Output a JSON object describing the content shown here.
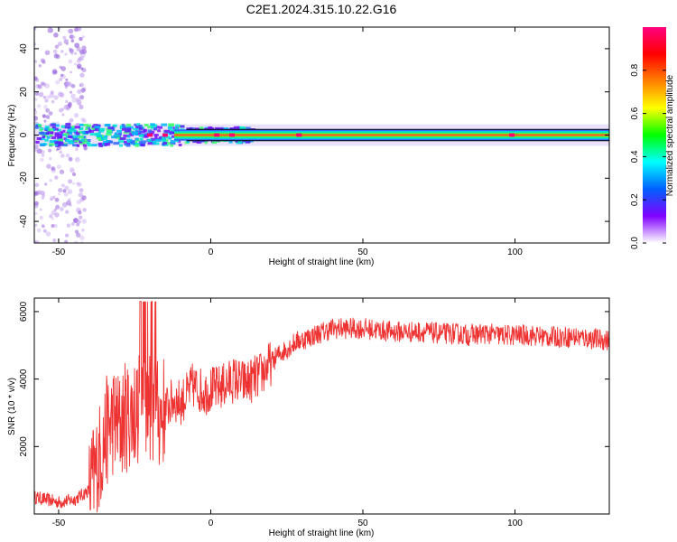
{
  "title": "C2E1.2024.315.10.22.G16",
  "chart_data": [
    {
      "type": "heatmap",
      "xlabel": "Height of straight line (km)",
      "ylabel": "Frequency (Hz)",
      "xlim": [
        -58,
        131
      ],
      "ylim": [
        -50,
        50
      ],
      "x_ticks": [
        -50,
        0,
        50,
        100
      ],
      "y_ticks": [
        -40,
        -20,
        0,
        20,
        40
      ],
      "band": {
        "x_start": -58,
        "x_end": 131,
        "center_freq": 0,
        "half_width": 3
      },
      "colorbar": {
        "label": "Normalized spectral amplitude",
        "range": [
          0,
          1
        ],
        "ticks": [
          0.0,
          0.2,
          0.4,
          0.6,
          0.8
        ],
        "colors": [
          "#ffffff",
          "#8000ff",
          "#0060ff",
          "#00ffff",
          "#00ff00",
          "#ffff00",
          "#ff8000",
          "#ff0000",
          "#ff0080"
        ]
      }
    },
    {
      "type": "line",
      "xlabel": "Height of straight line (km)",
      "ylabel": "SNR (10 * v/v)",
      "xlim": [
        -58,
        131
      ],
      "ylim": [
        0,
        6400
      ],
      "x_ticks": [
        -50,
        0,
        50,
        100
      ],
      "y_ticks": [
        2000,
        4000,
        6000
      ],
      "color": "#ee3333",
      "x": [
        -58,
        -50,
        -45,
        -40,
        -38,
        -36,
        -34,
        -32,
        -30,
        -28,
        -26,
        -24,
        -22,
        -20,
        -18,
        -16,
        -14,
        -12,
        -10,
        -8,
        -6,
        -4,
        -2,
        0,
        2,
        4,
        6,
        8,
        10,
        12,
        14,
        16,
        18,
        20,
        22,
        25,
        28,
        31,
        34,
        37,
        40,
        43,
        46,
        50,
        55,
        60,
        65,
        70,
        75,
        80,
        85,
        90,
        95,
        100,
        105,
        110,
        115,
        120,
        125,
        131
      ],
      "y": [
        500,
        350,
        420,
        700,
        1200,
        1900,
        2500,
        2800,
        2600,
        2900,
        3000,
        3100,
        3300,
        3200,
        2900,
        3000,
        3200,
        3400,
        3300,
        3500,
        3800,
        3700,
        3600,
        3700,
        3700,
        3800,
        3900,
        4000,
        3900,
        3900,
        4000,
        4100,
        4300,
        4500,
        4700,
        4900,
        5100,
        5200,
        5300,
        5400,
        5500,
        5500,
        5500,
        5500,
        5450,
        5400,
        5400,
        5400,
        5350,
        5350,
        5300,
        5350,
        5300,
        5300,
        5300,
        5250,
        5250,
        5250,
        5200,
        5150
      ]
    }
  ]
}
